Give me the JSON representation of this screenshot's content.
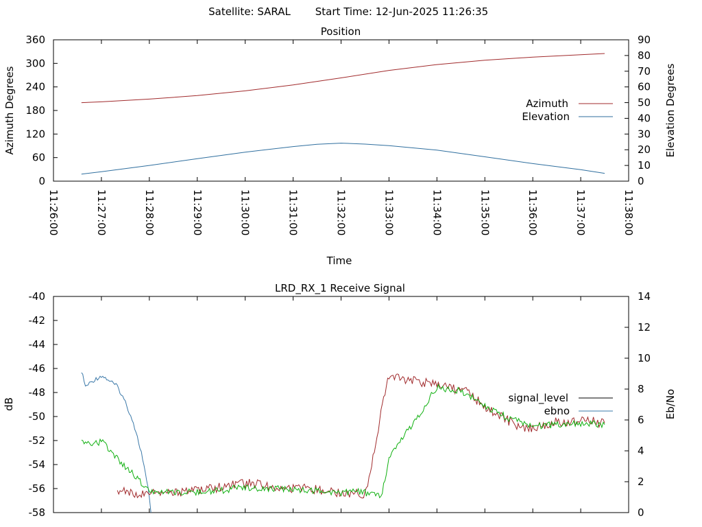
{
  "header": {
    "satellite": "Satellite: SARAL",
    "start_time": "Start Time: 12-Jun-2025 11:26:35"
  },
  "colors": {
    "azimuth": "#a0292b",
    "elevation": "#2e6e9e",
    "signal_level": "#a0292b",
    "ebno": "#3a78a8",
    "green_trace": "#10b010",
    "legend_signal_level": "#000000"
  },
  "chart_data": [
    {
      "type": "line",
      "title": "Position",
      "xlabel": "Time",
      "ylabel": "Azimuth Degrees",
      "y2label": "Elevation Degrees",
      "xlim": [
        "11:26:00",
        "11:38:00"
      ],
      "ylim": [
        0,
        360
      ],
      "y2lim": [
        0,
        90
      ],
      "x_ticks": [
        "11:26:00",
        "11:27:00",
        "11:28:00",
        "11:29:00",
        "11:30:00",
        "11:31:00",
        "11:32:00",
        "11:33:00",
        "11:34:00",
        "11:35:00",
        "11:36:00",
        "11:37:00",
        "11:38:00"
      ],
      "y_ticks": [
        0,
        60,
        120,
        180,
        240,
        300,
        360
      ],
      "y2_ticks": [
        0,
        10,
        20,
        30,
        40,
        50,
        60,
        70,
        80,
        90
      ],
      "legend_position": "right",
      "series": [
        {
          "name": "Azimuth",
          "axis": "y",
          "x": [
            "11:26:35",
            "11:27:00",
            "11:28:00",
            "11:29:00",
            "11:30:00",
            "11:31:00",
            "11:32:00",
            "11:33:00",
            "11:34:00",
            "11:35:00",
            "11:36:00",
            "11:37:00",
            "11:37:30"
          ],
          "values": [
            200,
            202,
            209,
            218,
            230,
            245,
            263,
            282,
            297,
            308,
            316,
            322,
            325
          ]
        },
        {
          "name": "Elevation",
          "axis": "y2",
          "x": [
            "11:26:35",
            "11:27:00",
            "11:28:00",
            "11:29:00",
            "11:30:00",
            "11:31:00",
            "11:31:30",
            "11:32:00",
            "11:32:30",
            "11:33:00",
            "11:34:00",
            "11:35:00",
            "11:36:00",
            "11:37:00",
            "11:37:30"
          ],
          "values": [
            4.5,
            6,
            10,
            14.3,
            18.5,
            22,
            23.5,
            24.2,
            23.6,
            22.6,
            19.8,
            15.5,
            11.2,
            7.3,
            5
          ]
        }
      ]
    },
    {
      "type": "line",
      "title": "LRD_RX_1 Receive Signal",
      "xlabel": "",
      "ylabel": "dB",
      "y2label": "Eb/No",
      "xlim": [
        "11:26:00",
        "11:38:00"
      ],
      "ylim": [
        -58,
        -40
      ],
      "y2lim": [
        0,
        14
      ],
      "y_ticks": [
        -58,
        -56,
        -54,
        -52,
        -50,
        -48,
        -46,
        -44,
        -42,
        -40
      ],
      "y2_ticks": [
        0,
        2,
        4,
        6,
        8,
        10,
        12,
        14
      ],
      "legend_position": "right",
      "series": [
        {
          "name": "signal_level",
          "axis": "y",
          "x": [
            "11:26:35",
            "11:26:40",
            "11:26:50",
            "11:27:00",
            "11:27:10",
            "11:27:20",
            "11:27:30",
            "11:27:40",
            "11:27:50",
            "11:28:00",
            "11:28:02"
          ],
          "values": [
            -46.2,
            -47.5,
            -47.0,
            -46.6,
            -47.0,
            -47.5,
            -48.8,
            -50.5,
            -53.0,
            -56.6,
            -58
          ]
        },
        {
          "name": "ebno",
          "axis": "y2",
          "x": [
            "11:27:20",
            "11:27:40",
            "11:28:00",
            "11:29:00",
            "11:30:00",
            "11:31:00",
            "11:31:30",
            "11:32:00",
            "11:32:30",
            "11:32:40",
            "11:32:50",
            "11:33:00",
            "11:34:00",
            "11:34:40",
            "11:35:00",
            "11:35:20",
            "11:35:40",
            "11:36:00",
            "11:36:20",
            "11:37:00",
            "11:37:30"
          ],
          "values": [
            1.5,
            1.2,
            1.2,
            1.4,
            1.9,
            1.6,
            1.5,
            1.3,
            1.2,
            3.5,
            6.5,
            8.8,
            8.3,
            7.8,
            6.8,
            6.2,
            5.6,
            5.5,
            5.8,
            6.0,
            5.8
          ]
        },
        {
          "name": "",
          "axis": "y2",
          "x": [
            "11:26:35",
            "11:26:45",
            "11:27:00",
            "11:27:15",
            "11:27:30",
            "11:27:45",
            "11:28:00",
            "11:29:00",
            "11:30:00",
            "11:31:00",
            "11:31:30",
            "11:32:00",
            "11:32:20",
            "11:32:40",
            "11:32:50",
            "11:33:00",
            "11:34:00",
            "11:34:30",
            "11:35:00",
            "11:35:30",
            "11:36:00",
            "11:37:00",
            "11:37:30"
          ],
          "values": [
            4.6,
            4.4,
            4.6,
            3.8,
            3.0,
            2.2,
            1.4,
            1.3,
            1.6,
            1.5,
            1.4,
            1.3,
            1.4,
            1.2,
            1.0,
            3.5,
            8.1,
            7.9,
            6.9,
            6.1,
            5.6,
            5.8,
            5.7
          ]
        }
      ]
    }
  ]
}
